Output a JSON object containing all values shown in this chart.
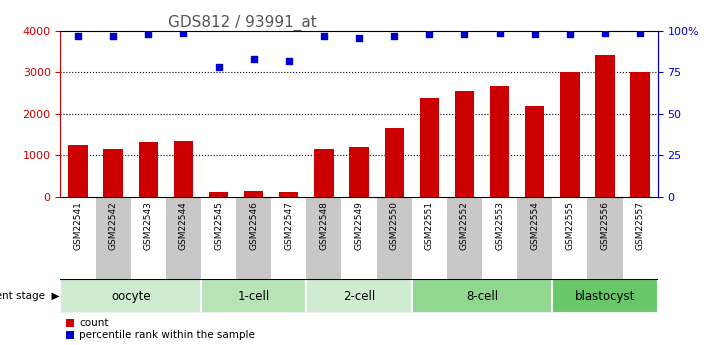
{
  "title": "GDS812 / 93991_at",
  "samples": [
    "GSM22541",
    "GSM22542",
    "GSM22543",
    "GSM22544",
    "GSM22545",
    "GSM22546",
    "GSM22547",
    "GSM22548",
    "GSM22549",
    "GSM22550",
    "GSM22551",
    "GSM22552",
    "GSM22553",
    "GSM22554",
    "GSM22555",
    "GSM22556",
    "GSM22557"
  ],
  "counts": [
    1250,
    1150,
    1320,
    1340,
    110,
    130,
    110,
    1160,
    1200,
    1650,
    2380,
    2560,
    2680,
    2200,
    3000,
    3420,
    3020
  ],
  "percentiles": [
    97,
    97,
    98,
    99,
    78,
    83,
    82,
    97,
    96,
    97,
    98,
    98,
    99,
    98,
    98,
    99,
    99
  ],
  "bar_color": "#cc0000",
  "dot_color": "#0000cc",
  "title_color": "#555555",
  "left_axis_color": "#cc0000",
  "right_axis_color": "#0000cc",
  "ylim_left": [
    0,
    4000
  ],
  "ylim_right": [
    0,
    100
  ],
  "yticks_left": [
    0,
    1000,
    2000,
    3000,
    4000
  ],
  "ytick_labels_left": [
    "0",
    "1000",
    "2000",
    "3000",
    "4000"
  ],
  "yticks_right": [
    0,
    25,
    50,
    75,
    100
  ],
  "ytick_labels_right": [
    "0",
    "25",
    "50",
    "75",
    "100%"
  ],
  "stages": [
    {
      "name": "oocyte",
      "start": 0,
      "end": 4,
      "color": "#d0ecd0"
    },
    {
      "name": "1-cell",
      "start": 4,
      "end": 7,
      "color": "#b8e4b8"
    },
    {
      "name": "2-cell",
      "start": 7,
      "end": 10,
      "color": "#d0ecd0"
    },
    {
      "name": "8-cell",
      "start": 10,
      "end": 14,
      "color": "#90d890"
    },
    {
      "name": "blastocyst",
      "start": 14,
      "end": 17,
      "color": "#68c868"
    }
  ],
  "stage_label": "development stage",
  "legend_count_label": "count",
  "legend_percentile_label": "percentile rank within the sample",
  "bar_width": 0.55,
  "dot_size": 20,
  "sample_bg_color": "#c8c8c8",
  "grid_linestyle": "dotted",
  "grid_linewidth": 0.8,
  "tick_label_fontsize": 8,
  "sample_label_fontsize": 6.5,
  "stage_fontsize": 8.5,
  "title_fontsize": 11,
  "legend_fontsize": 7.5,
  "stage_label_fontsize": 7.5
}
